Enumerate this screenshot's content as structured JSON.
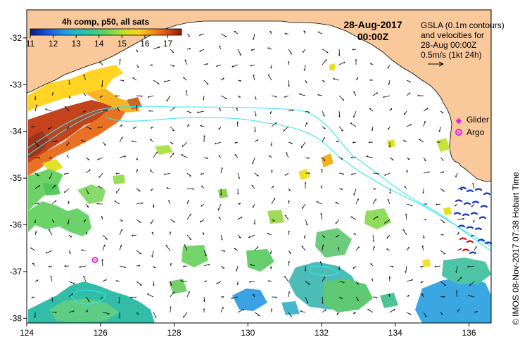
{
  "map": {
    "title_date": "28-Aug-2017",
    "title_time": "00:00Z",
    "x_ticks": [
      "124",
      "126",
      "128",
      "130",
      "132",
      "134",
      "136"
    ],
    "y_ticks": [
      "-32",
      "-33",
      "-34",
      "-35",
      "-36",
      "-37",
      "-38"
    ],
    "lon_range": [
      124,
      136.6
    ],
    "lat_range": [
      -38.1,
      -31.4
    ],
    "colors": {
      "land": "#f9c89b",
      "ocean": "#ffffff",
      "contour": "#33e6f5",
      "argo": "#e020e0",
      "glider": "#e020e0"
    }
  },
  "colorbar": {
    "title": "4h comp, p50, all sats",
    "ticks": [
      "11",
      "12",
      "13",
      "14",
      "15",
      "16",
      "17"
    ],
    "range": [
      11,
      17.6
    ]
  },
  "annotation": {
    "line1": "GSLA (0.1m contours)",
    "line2": "and velocities for",
    "line3": "28-Aug 00:00Z",
    "line4": "0.5m/s (1kt 24h)"
  },
  "legend": {
    "glider": "Glider",
    "argo": "Argo"
  },
  "credit": "© IMOS 08-Nov-2017 07:38 Hobart Time",
  "argo_float": {
    "lon": 125.85,
    "lat": -36.75
  }
}
